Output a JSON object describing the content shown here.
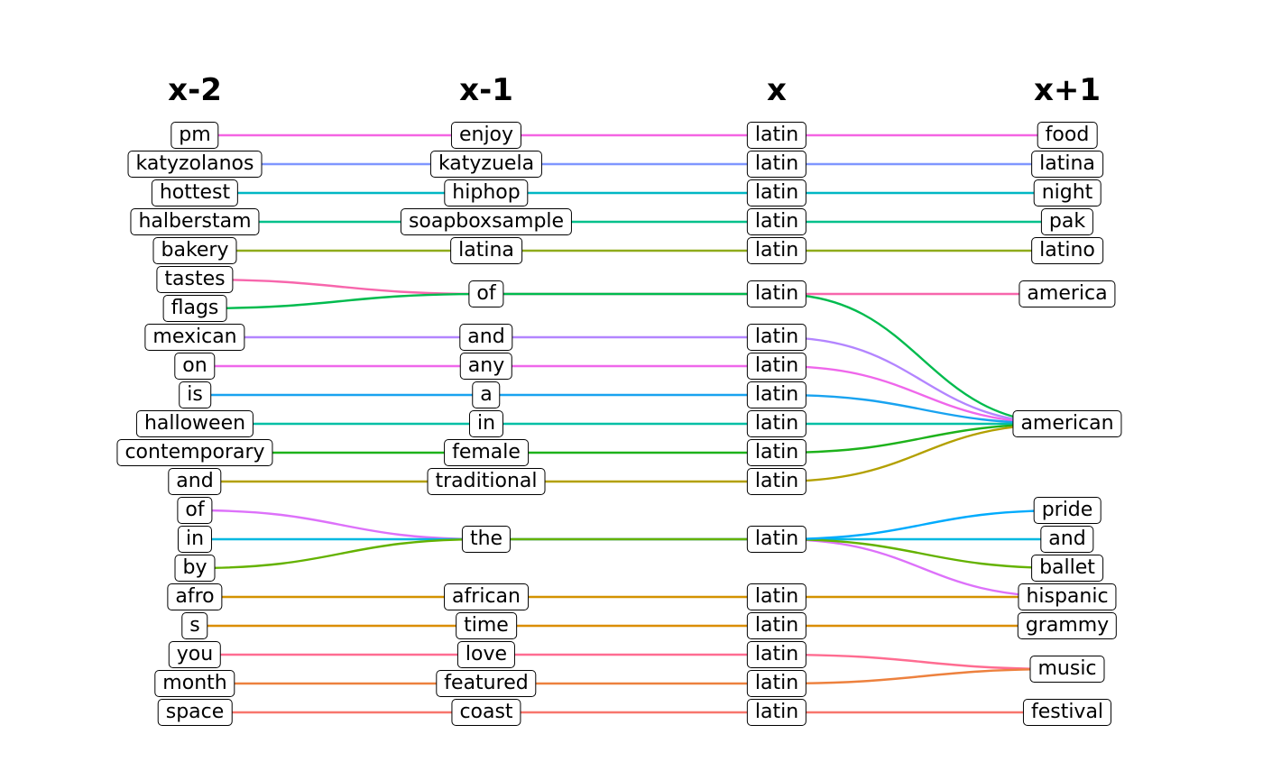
{
  "headers": [
    "x-2",
    "x-1",
    "x",
    "x+1"
  ],
  "columns": [
    [
      "pm",
      "katyzolanos",
      "hottest",
      "halberstam",
      "bakery",
      "tastes",
      "flags",
      "mexican",
      "on",
      "is",
      "halloween",
      "contemporary",
      "and",
      "of",
      "in",
      "by",
      "afro",
      "s",
      "you",
      "month",
      "space"
    ],
    [
      "enjoy",
      "katyzuela",
      "hiphop",
      "soapboxsample",
      "latina",
      "of",
      "and",
      "any",
      "a",
      "in",
      "female",
      "traditional",
      "the",
      "african",
      "time",
      "love",
      "featured",
      "coast"
    ],
    [
      "latin",
      "latin",
      "latin",
      "latin",
      "latin",
      "latin",
      "latin",
      "latin",
      "latin",
      "latin",
      "latin",
      "latin",
      "latin",
      "latin",
      "latin",
      "latin",
      "latin",
      "latin"
    ],
    [
      "food",
      "latina",
      "night",
      "pak",
      "latino",
      "america",
      "american",
      "pride",
      "and",
      "ballet",
      "hispanic",
      "grammy",
      "music",
      "festival"
    ]
  ],
  "flows": [
    {
      "path": [
        0,
        0,
        0,
        0
      ],
      "color": "#f564e3"
    },
    {
      "path": [
        1,
        1,
        1,
        1
      ],
      "color": "#7f96ff"
    },
    {
      "path": [
        2,
        2,
        2,
        2
      ],
      "color": "#00b7c4"
    },
    {
      "path": [
        3,
        3,
        3,
        3
      ],
      "color": "#00c08b"
    },
    {
      "path": [
        4,
        4,
        4,
        4
      ],
      "color": "#8fab1b"
    },
    {
      "path": [
        5,
        5,
        5,
        5
      ],
      "color": "#f766ac"
    },
    {
      "path": [
        6,
        5,
        5,
        6
      ],
      "color": "#00bb4e"
    },
    {
      "path": [
        7,
        6,
        6,
        6
      ],
      "color": "#b385ff"
    },
    {
      "path": [
        8,
        7,
        7,
        6
      ],
      "color": "#ef67eb"
    },
    {
      "path": [
        9,
        8,
        8,
        6
      ],
      "color": "#19a3f0"
    },
    {
      "path": [
        10,
        9,
        9,
        6
      ],
      "color": "#00bfa5"
    },
    {
      "path": [
        11,
        10,
        10,
        6
      ],
      "color": "#1db21b"
    },
    {
      "path": [
        12,
        11,
        11,
        6
      ],
      "color": "#b3a000"
    },
    {
      "path": [
        13,
        12,
        12,
        10
      ],
      "color": "#dd71fa"
    },
    {
      "path": [
        14,
        12,
        12,
        8
      ],
      "color": "#00b8e0"
    },
    {
      "path": [
        15,
        12,
        12,
        9
      ],
      "color": "#64b200"
    },
    {
      "path": [
        null,
        null,
        12,
        7
      ],
      "color": "#00abfd"
    },
    {
      "path": [
        16,
        13,
        13,
        10
      ],
      "color": "#d39200"
    },
    {
      "path": [
        17,
        14,
        14,
        11
      ],
      "color": "#db8e00"
    },
    {
      "path": [
        18,
        15,
        15,
        12
      ],
      "color": "#ff6c91"
    },
    {
      "path": [
        19,
        16,
        16,
        12
      ],
      "color": "#ed813e"
    },
    {
      "path": [
        20,
        17,
        17,
        13
      ],
      "color": "#f8766d"
    }
  ]
}
